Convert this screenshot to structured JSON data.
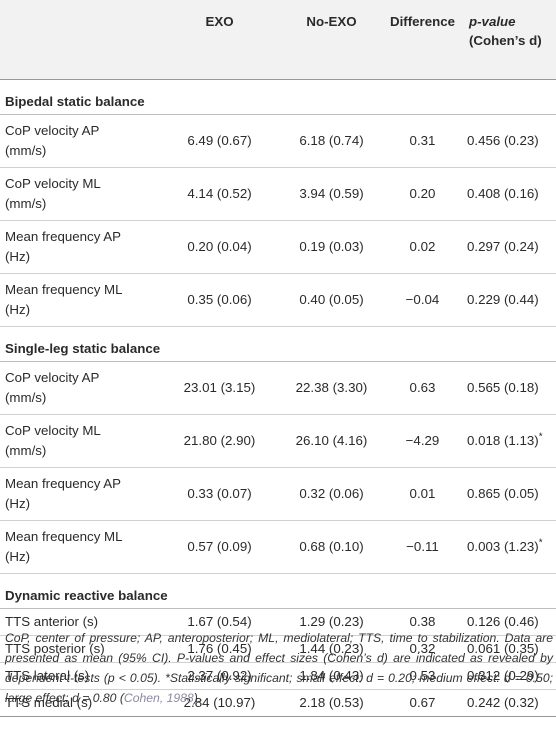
{
  "header": {
    "col0": "",
    "col1": "EXO",
    "col2": "No-EXO",
    "col3": "Difference",
    "col4_line1": "p-value",
    "col4_line2": "(Cohen’s d)"
  },
  "sections": [
    {
      "title": "Bipedal static balance",
      "rows": [
        {
          "label1": "CoP velocity AP",
          "label2": "(mm/s)",
          "exo": "6.49 (0.67)",
          "noexo": "6.18 (0.74)",
          "diff": "0.31",
          "p": "0.456 (0.23)",
          "sig": ""
        },
        {
          "label1": "CoP velocity ML",
          "label2": "(mm/s)",
          "exo": "4.14 (0.52)",
          "noexo": "3.94 (0.59)",
          "diff": "0.20",
          "p": "0.408 (0.16)",
          "sig": ""
        },
        {
          "label1": "Mean frequency AP",
          "label2": "(Hz)",
          "exo": "0.20 (0.04)",
          "noexo": "0.19 (0.03)",
          "diff": "0.02",
          "p": "0.297 (0.24)",
          "sig": ""
        },
        {
          "label1": "Mean frequency ML",
          "label2": "(Hz)",
          "exo": "0.35 (0.06)",
          "noexo": "0.40 (0.05)",
          "diff": "−0.04",
          "p": "0.229 (0.44)",
          "sig": ""
        }
      ]
    },
    {
      "title": "Single-leg static balance",
      "rows": [
        {
          "label1": "CoP velocity AP",
          "label2": "(mm/s)",
          "exo": "23.01 (3.15)",
          "noexo": "22.38 (3.30)",
          "diff": "0.63",
          "p": "0.565 (0.18)",
          "sig": ""
        },
        {
          "label1": "CoP velocity ML",
          "label2": "(mm/s)",
          "exo": "21.80 (2.90)",
          "noexo": "26.10 (4.16)",
          "diff": "−4.29",
          "p": "0.018 (1.13)",
          "sig": "*"
        },
        {
          "label1": "Mean frequency AP",
          "label2": "(Hz)",
          "exo": "0.33 (0.07)",
          "noexo": "0.32 (0.06)",
          "diff": "0.01",
          "p": "0.865 (0.05)",
          "sig": ""
        },
        {
          "label1": "Mean frequency ML",
          "label2": "(Hz)",
          "exo": "0.57 (0.09)",
          "noexo": "0.68 (0.10)",
          "diff": "−0.11",
          "p": "0.003 (1.23)",
          "sig": "*"
        }
      ]
    },
    {
      "title": "Dynamic reactive balance",
      "rows": [
        {
          "label1": "TTS anterior (s)",
          "label2": "",
          "exo": "1.67 (0.54)",
          "noexo": "1.29 (0.23)",
          "diff": "0.38",
          "p": "0.126 (0.46)",
          "sig": ""
        },
        {
          "label1": "TTS posterior (s)",
          "label2": "",
          "exo": "1.76 (0.45)",
          "noexo": "1.44 (0.23)",
          "diff": "0.32",
          "p": "0.061 (0.35)",
          "sig": ""
        },
        {
          "label1": "TTS lateral (s)",
          "label2": "",
          "exo": "2.37 (0.92)",
          "noexo": "1.84 (0.43)",
          "diff": "0.53",
          "p": "0.312 (0.29)",
          "sig": ""
        },
        {
          "label1": "TTS medial (s)",
          "label2": "",
          "exo": "2.84 (10.97)",
          "noexo": "2.18 (0.53)",
          "diff": "0.67",
          "p": "0.242 (0.32)",
          "sig": ""
        }
      ]
    }
  ],
  "footnote": {
    "text": "CoP, center of pressure; AP, anteroposterior; ML, mediolateral; TTS, time to stabilization. Data are presented as mean (95% CI). P-values and effect sizes (Cohen’s d) are indicated as revealed by dependent t-tests (p < 0.05). *Statistically significant; small effect: d = 0.20; medium effect: d = 0.50; large effect: d = 0.80 (",
    "citation": "Cohen, 1988",
    "tail": ")."
  }
}
